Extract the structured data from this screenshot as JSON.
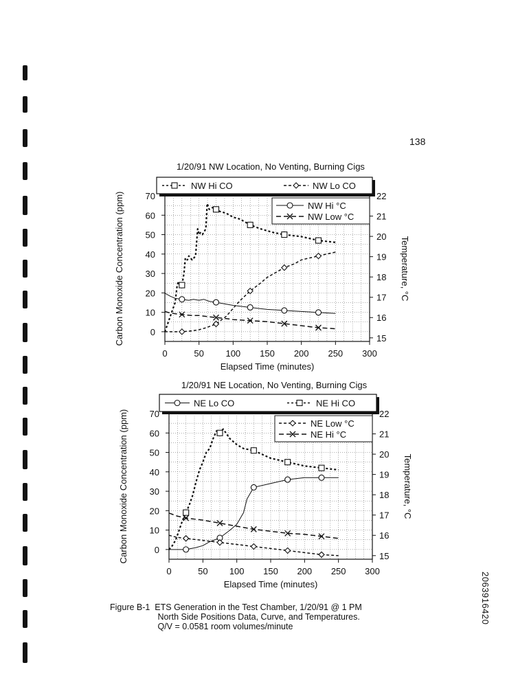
{
  "page": {
    "page_number": "138",
    "side_code": "2063916420",
    "caption": [
      "Figure B-1  ETS Generation in the Test Chamber, 1/20/91 @ 1 PM",
      "                    North Side Positions Data, Curve, and Temperatures.",
      "                    Q/V = 0.0581 room volumes/minute"
    ]
  },
  "styles": {
    "ink": "#111111",
    "paper": "#ffffff"
  },
  "chart_data": [
    {
      "type": "line",
      "title": "1/20/91 NW Location, No Venting, Burning Cigs",
      "xlabel": "Elapsed Time (minutes)",
      "ylabel": "Carbon Monoxide Concentration (ppm)",
      "y2label": "Temperature, °C",
      "xlim": [
        0,
        300
      ],
      "ylim": [
        -5,
        70
      ],
      "y2lim": [
        14.8235,
        22
      ],
      "x_ticks": [
        0,
        50,
        100,
        150,
        200,
        250,
        300
      ],
      "y_ticks": [
        0,
        10,
        20,
        30,
        40,
        50,
        60,
        70
      ],
      "y2_ticks": [
        15,
        16,
        17,
        18,
        19,
        20,
        21,
        22
      ],
      "grid": true,
      "legend_top": [
        "NW Hi CO",
        "NW Lo CO"
      ],
      "legend_inner": [
        "NW Hi °C",
        "NW Low °C"
      ],
      "series": [
        {
          "name": "NW Hi CO",
          "axis": "left",
          "marker": "square",
          "dash": "3,3",
          "width": 2.2,
          "x": [
            0,
            5,
            10,
            15,
            18,
            20,
            22,
            25,
            28,
            30,
            33,
            35,
            40,
            45,
            48,
            50,
            52,
            55,
            60,
            62,
            65,
            70,
            75,
            80,
            90,
            100,
            110,
            125,
            140,
            160,
            175,
            200,
            225,
            250
          ],
          "y": [
            0,
            5,
            10,
            15,
            24,
            26,
            23,
            24,
            30,
            38,
            37,
            39,
            37,
            39,
            53,
            50,
            51,
            50,
            53,
            66,
            63,
            64,
            63,
            62,
            61,
            59,
            58,
            55,
            53,
            51,
            50,
            49,
            47,
            46
          ]
        },
        {
          "name": "NW Lo CO",
          "axis": "left",
          "marker": "diamond",
          "dash": "4,3",
          "width": 1.5,
          "x": [
            0,
            10,
            25,
            40,
            50,
            60,
            75,
            90,
            100,
            110,
            125,
            140,
            150,
            160,
            175,
            190,
            200,
            212,
            225,
            237,
            250
          ],
          "y": [
            0,
            0,
            0,
            0.5,
            1,
            2,
            4,
            8,
            12,
            16,
            21,
            25,
            28,
            30,
            33,
            35,
            37,
            38,
            39,
            40,
            41
          ]
        },
        {
          "name": "NW Hi °C",
          "axis": "right",
          "marker": "circle",
          "dash": "",
          "width": 1,
          "x": [
            0,
            8,
            15,
            25,
            35,
            42,
            50,
            57,
            65,
            75,
            100,
            125,
            150,
            175,
            200,
            225,
            250
          ],
          "y": [
            17.2,
            17.05,
            16.95,
            16.9,
            16.85,
            16.9,
            16.85,
            16.9,
            16.8,
            16.75,
            16.6,
            16.5,
            16.4,
            16.35,
            16.3,
            16.25,
            16.2
          ]
        },
        {
          "name": "NW Low °C",
          "axis": "right",
          "marker": "x",
          "dash": "7,4",
          "width": 1.5,
          "x": [
            0,
            5,
            12,
            25,
            40,
            50,
            62,
            75,
            90,
            100,
            125,
            150,
            175,
            200,
            225,
            250
          ],
          "y": [
            16.3,
            16.25,
            16.2,
            16.15,
            16.1,
            16.1,
            16.05,
            16.0,
            15.95,
            15.9,
            15.85,
            15.8,
            15.7,
            15.6,
            15.5,
            15.45
          ]
        }
      ]
    },
    {
      "type": "line",
      "title": "1/20/91 NE Location, No Venting, Burning Cigs",
      "xlabel": "Elapsed Time (minutes)",
      "ylabel": "Carbon Monoxide Concentration (ppm)",
      "y2label": "Temperature, °C",
      "xlim": [
        0,
        300
      ],
      "ylim": [
        -5,
        70
      ],
      "y2lim": [
        14.8235,
        22
      ],
      "x_ticks": [
        0,
        50,
        100,
        150,
        200,
        250,
        300
      ],
      "y_ticks": [
        0,
        10,
        20,
        30,
        40,
        50,
        60,
        70
      ],
      "y2_ticks": [
        15,
        16,
        17,
        18,
        19,
        20,
        21,
        22
      ],
      "grid": true,
      "legend_top": [
        "NE Lo CO",
        "NE Hi CO"
      ],
      "legend_inner": [
        "NE Low °C",
        "NE Hi °C"
      ],
      "series": [
        {
          "name": "NE Lo CO",
          "axis": "left",
          "marker": "circle",
          "dash": "",
          "width": 1,
          "x": [
            0,
            10,
            25,
            40,
            50,
            60,
            75,
            90,
            100,
            110,
            115,
            125,
            150,
            175,
            200,
            225,
            250
          ],
          "y": [
            0,
            0,
            0,
            1,
            2,
            4,
            6,
            10,
            13,
            19,
            26,
            32,
            34,
            36,
            37,
            37,
            37
          ]
        },
        {
          "name": "NE Hi CO",
          "axis": "left",
          "marker": "square",
          "dash": "3,3",
          "width": 2.2,
          "x": [
            0,
            5,
            10,
            15,
            20,
            25,
            30,
            35,
            40,
            45,
            50,
            55,
            60,
            65,
            70,
            75,
            80,
            90,
            100,
            110,
            125,
            150,
            175,
            200,
            225,
            250
          ],
          "y": [
            0,
            2,
            5,
            10,
            15,
            19,
            23,
            28,
            35,
            41,
            45,
            50,
            52,
            57,
            61,
            60,
            62,
            57,
            54,
            52,
            51,
            47,
            45,
            43,
            42,
            41
          ]
        },
        {
          "name": "NE Low °C",
          "axis": "right",
          "marker": "diamond",
          "dash": "4,3",
          "width": 1.5,
          "x": [
            0,
            12,
            25,
            50,
            75,
            100,
            125,
            150,
            175,
            200,
            225,
            250
          ],
          "y": [
            16.0,
            15.9,
            15.85,
            15.75,
            15.65,
            15.55,
            15.45,
            15.35,
            15.25,
            15.15,
            15.05,
            15.0
          ]
        },
        {
          "name": "NE Hi °C",
          "axis": "right",
          "marker": "x",
          "dash": "7,4",
          "width": 1.5,
          "x": [
            0,
            12,
            25,
            50,
            75,
            100,
            125,
            150,
            175,
            200,
            225,
            250
          ],
          "y": [
            17.1,
            16.95,
            16.85,
            16.75,
            16.6,
            16.45,
            16.3,
            16.2,
            16.1,
            16.05,
            15.95,
            15.85
          ]
        }
      ]
    }
  ]
}
